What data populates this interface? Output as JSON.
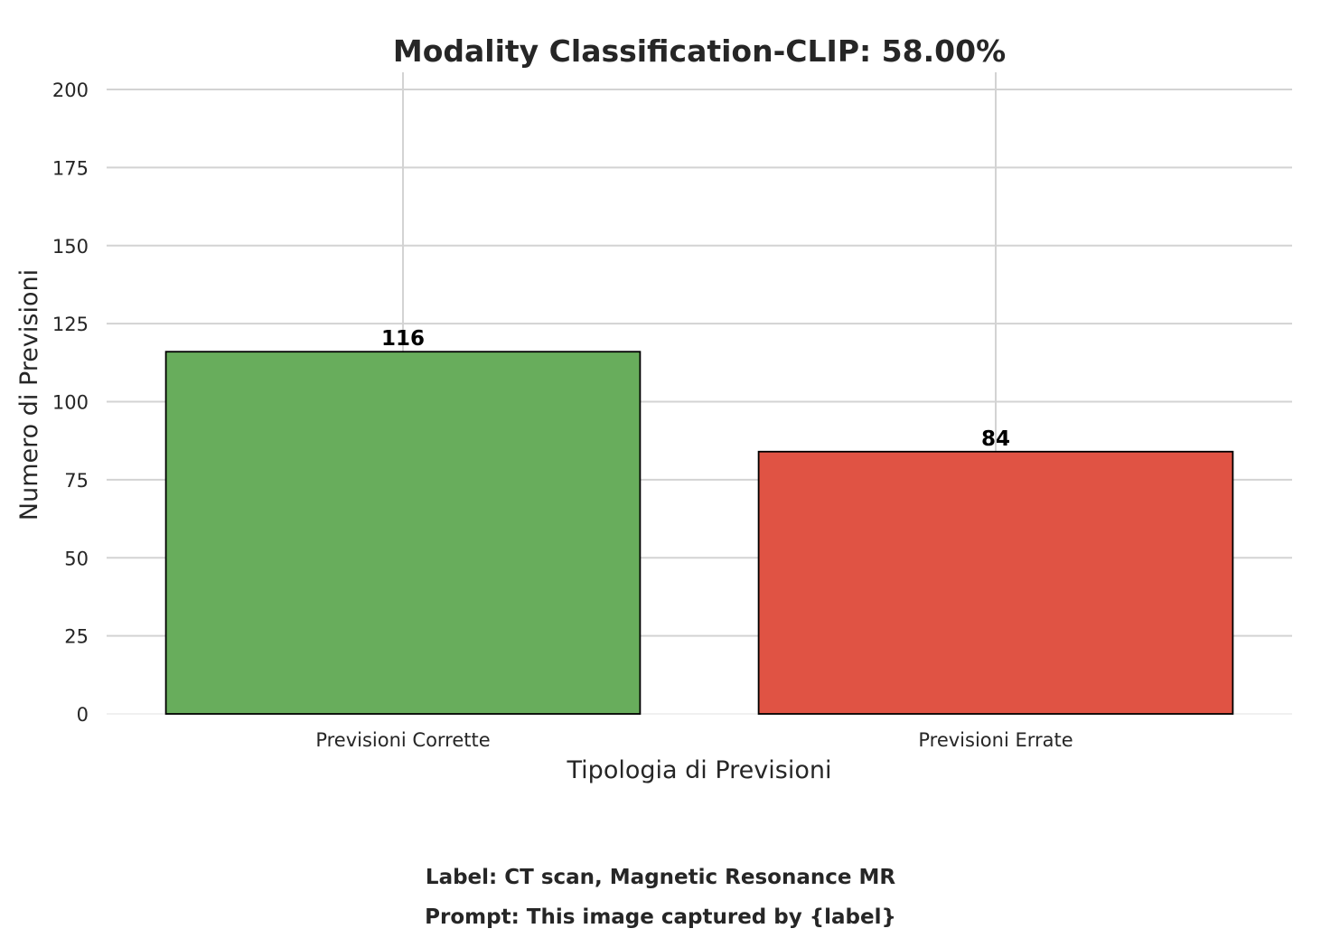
{
  "chart_data": {
    "type": "bar",
    "title": "Modality Classification-CLIP: 58.00%",
    "xlabel": "Tipologia di Previsioni",
    "ylabel": "Numero di Previsioni",
    "categories": [
      "Previsioni Corrette",
      "Previsioni Errate"
    ],
    "values": [
      116,
      84
    ],
    "data_labels": [
      "116",
      "84"
    ],
    "colors": [
      "#68ad5c",
      "#e05344"
    ],
    "ylim": [
      0,
      200
    ],
    "yticks": [
      0,
      25,
      50,
      75,
      100,
      125,
      150,
      175,
      200
    ],
    "grid": true,
    "legend": "none"
  },
  "footer": {
    "label_line": "Label: CT scan, Magnetic Resonance MR",
    "prompt_line": "Prompt: This image captured by {label}"
  },
  "colors": {
    "grid": "#d3d3d3",
    "text": "#262626",
    "bar_edge": "#000000"
  }
}
